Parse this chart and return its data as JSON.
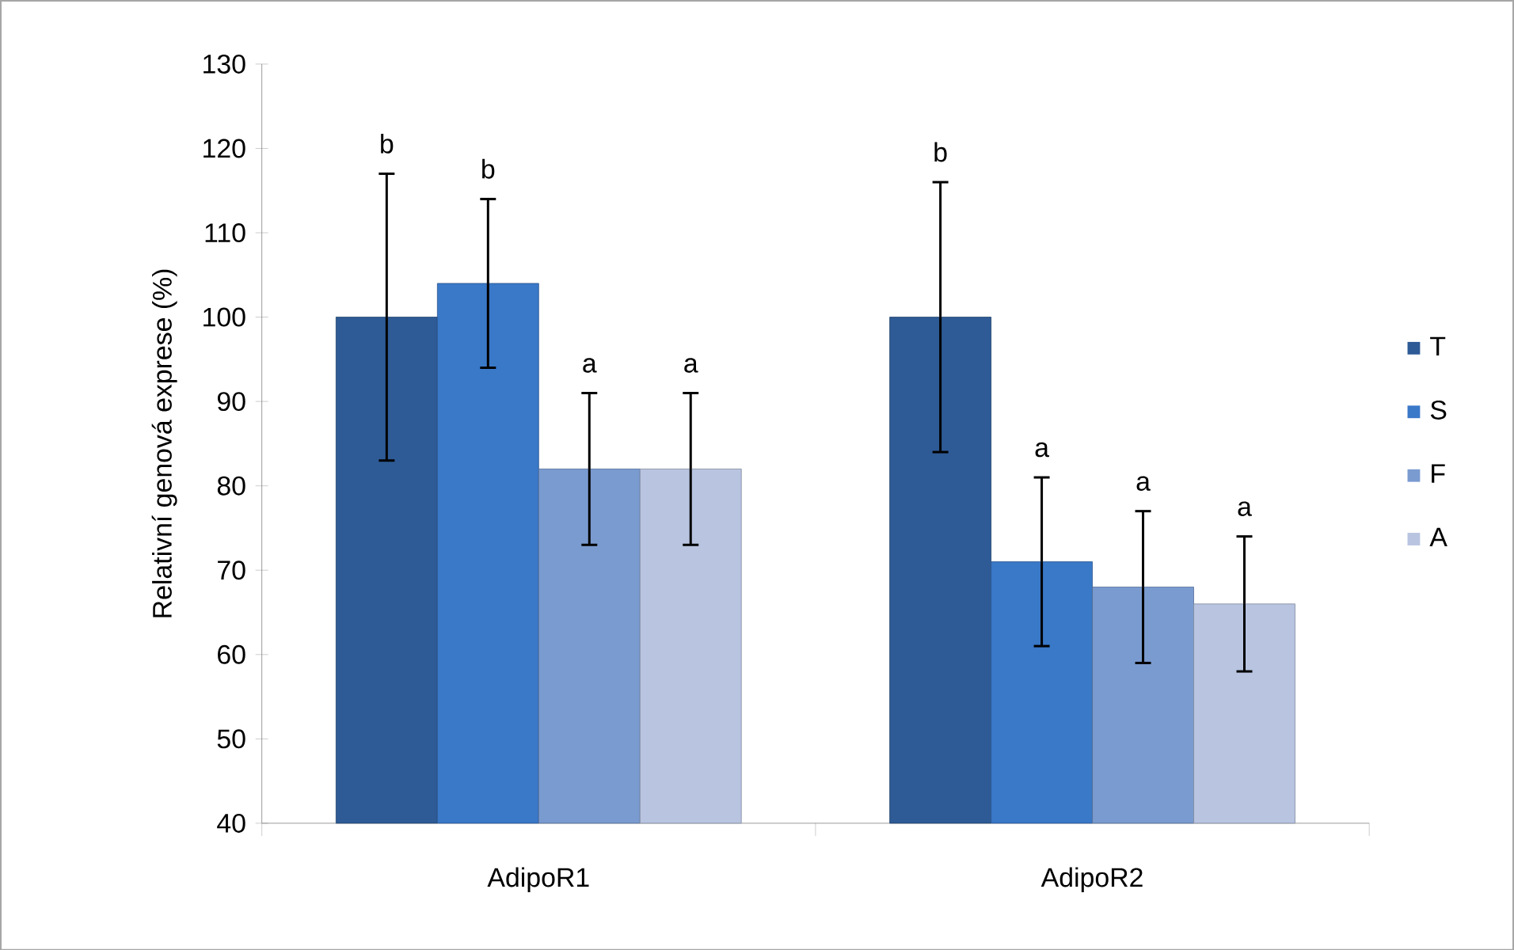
{
  "chart_data": {
    "type": "bar",
    "ylabel": "Relativní genová exprese (%)",
    "categories": [
      "AdipoR1",
      "AdipoR2"
    ],
    "series": [
      {
        "name": "T",
        "color": "#2e5b96",
        "values": [
          100,
          100
        ],
        "errors": [
          17,
          16
        ]
      },
      {
        "name": "S",
        "color": "#3a78c8",
        "values": [
          104,
          71
        ],
        "errors": [
          10,
          10
        ]
      },
      {
        "name": "F",
        "color": "#7a9bd0",
        "values": [
          82,
          68
        ],
        "errors": [
          9,
          9
        ]
      },
      {
        "name": "A",
        "color": "#b8c4e0",
        "values": [
          82,
          66
        ],
        "errors": [
          9,
          8
        ]
      }
    ],
    "ylim": [
      40,
      130
    ],
    "yticks": [
      40,
      50,
      60,
      70,
      80,
      90,
      100,
      110,
      120,
      130
    ],
    "annotations": [
      "b",
      "b",
      "a",
      "a",
      "b",
      "a",
      "a",
      "a"
    ],
    "legend": "right"
  }
}
